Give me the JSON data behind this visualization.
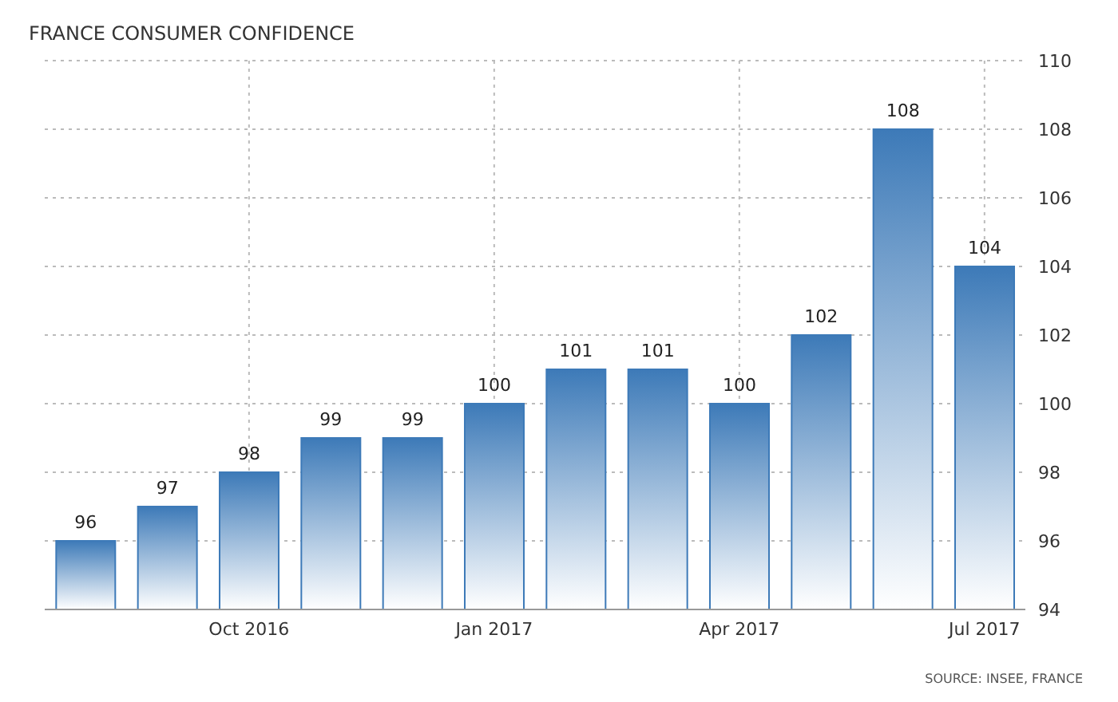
{
  "chart_data": {
    "type": "bar",
    "title": "FRANCE CONSUMER CONFIDENCE",
    "categories": [
      null,
      null,
      "Oct 2016",
      null,
      null,
      "Jan 2017",
      null,
      null,
      "Apr 2017",
      null,
      null,
      "Jul 2017"
    ],
    "values": [
      96,
      97,
      98,
      99,
      99,
      100,
      101,
      101,
      100,
      102,
      108,
      104
    ],
    "color": "#3d7ab8",
    "ylim": [
      94,
      110
    ],
    "yticks": [
      94,
      96,
      98,
      100,
      102,
      104,
      106,
      108,
      110
    ],
    "grid": true,
    "data_labels": true,
    "annotations": [
      "SOURCE: INSEE, FRANCE"
    ]
  }
}
